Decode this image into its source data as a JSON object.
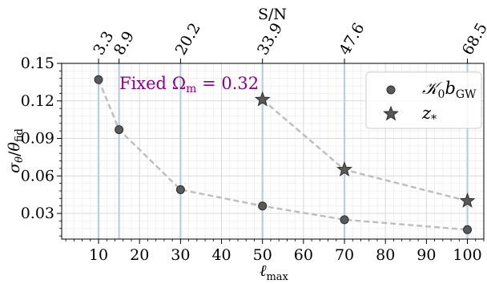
{
  "chart_data": {
    "type": "scatter",
    "xlabel": "ℓ",
    "xlabel_sub": "max",
    "ylabel": "σ",
    "ylabel_parts": {
      "sigma": "σ",
      "sub1": "θ",
      "slash": "/",
      "theta": "θ",
      "sub2": "fid"
    },
    "top_axis_label": "S/N",
    "annotation": {
      "prefix": "Fixed ",
      "symbol": "Ω",
      "sub": "m",
      "eq": " = 0.32"
    },
    "xlim": [
      1,
      104
    ],
    "ylim": [
      0.0095,
      0.15
    ],
    "x_ticks": [
      10,
      20,
      30,
      40,
      50,
      60,
      70,
      80,
      90,
      100
    ],
    "x_tick_labels": [
      "10",
      "20",
      "30",
      "40",
      "50",
      "60",
      "70",
      "80",
      "90",
      "100"
    ],
    "y_ticks": [
      0.03,
      0.06,
      0.09,
      0.12,
      0.15
    ],
    "y_tick_labels": [
      "0.03",
      "0.06",
      "0.09",
      "0.12",
      "0.15"
    ],
    "top_ticks": [
      {
        "x": 10,
        "label": "3.3"
      },
      {
        "x": 15,
        "label": "8.9"
      },
      {
        "x": 30,
        "label": "20.2"
      },
      {
        "x": 50,
        "label": "33.9"
      },
      {
        "x": 70,
        "label": "47.6"
      },
      {
        "x": 100,
        "label": "68.5"
      }
    ],
    "vlines_x": [
      10,
      15,
      30,
      50,
      70,
      100
    ],
    "grid": true,
    "legend_position": "top-right",
    "series": [
      {
        "name": "K0bGW",
        "legend": {
          "main": "𝒦",
          "sub1": "0",
          "b": "b",
          "sub2": "GW"
        },
        "marker": "circle",
        "x": [
          10,
          15,
          30,
          50,
          70,
          100
        ],
        "y": [
          0.137,
          0.097,
          0.049,
          0.036,
          0.025,
          0.017
        ]
      },
      {
        "name": "z*",
        "legend": {
          "main": "z",
          "sub1": "*"
        },
        "marker": "star",
        "x": [
          50,
          70,
          100
        ],
        "y": [
          0.121,
          0.065,
          0.04
        ]
      }
    ]
  },
  "colors": {
    "marker_fill": "#595959",
    "marker_edge": "#2f2f2f",
    "dashed_line": "#bdbdbd",
    "vline": "#b8cfe0",
    "grid_major": "#d9d9d9",
    "grid_minor": "#ededed",
    "annotation": "#8b008b"
  }
}
